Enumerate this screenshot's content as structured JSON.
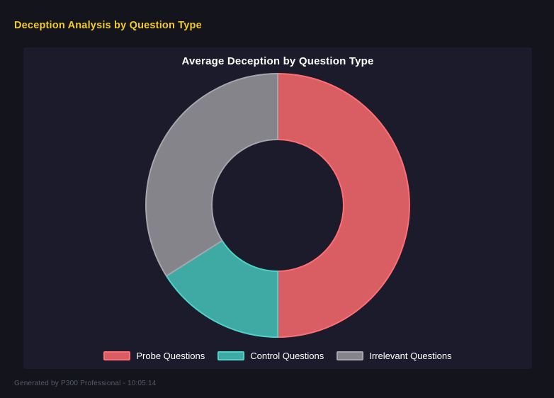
{
  "page": {
    "title": "Deception Analysis by Question Type",
    "title_color": "#f2ca27",
    "background_color": "#14141d",
    "panel_color": "#1b1b2c"
  },
  "chart": {
    "title": "Average Deception by Question Type"
  },
  "chart_data": {
    "type": "pie",
    "variant": "doughnut",
    "title": "Average Deception by Question Type",
    "categories": [
      "Probe Questions",
      "Control Questions",
      "Irrelevant Questions"
    ],
    "values_pct": [
      50,
      16,
      34
    ],
    "start_angle_deg": 0,
    "direction": "clockwise",
    "inner_radius_ratio": 0.5,
    "legend_position": "bottom",
    "segments": [
      {
        "label": "Probe Questions",
        "value_pct": 50,
        "fill": "#d85e64",
        "border": "#ff6e74"
      },
      {
        "label": "Control Questions",
        "value_pct": 16,
        "fill": "#3faaa3",
        "border": "#4dd2c8"
      },
      {
        "label": "Irrelevant Questions",
        "value_pct": 34,
        "fill": "#85848a",
        "border": "#a6a5ac"
      }
    ]
  },
  "footer": {
    "text": "Generated by P300 Professional - 10:05:14"
  }
}
